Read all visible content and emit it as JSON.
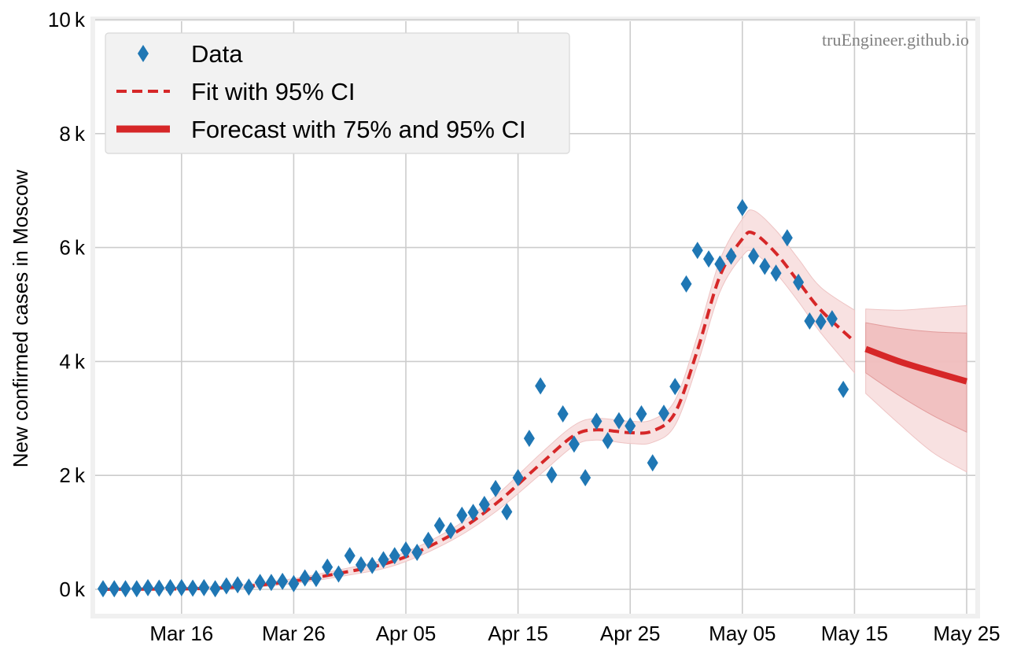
{
  "chart_data": {
    "type": "line",
    "title": "",
    "xlabel": "",
    "ylabel": "New confirmed cases in Moscow",
    "y_unit_suffix": "k",
    "grid": true,
    "legend_placement": "top-left",
    "watermark": "truEngineer.github.io",
    "x_range": [
      "2020-03-09",
      "2020-05-25"
    ],
    "ylim": [
      0,
      10
    ],
    "x_ticks": [
      {
        "date": "2020-03-16",
        "label": "Mar 16"
      },
      {
        "date": "2020-03-26",
        "label": "Mar 26"
      },
      {
        "date": "2020-04-05",
        "label": "Apr 05"
      },
      {
        "date": "2020-04-15",
        "label": "Apr 15"
      },
      {
        "date": "2020-04-25",
        "label": "Apr 25"
      },
      {
        "date": "2020-05-05",
        "label": "May 05"
      },
      {
        "date": "2020-05-15",
        "label": "May 15"
      },
      {
        "date": "2020-05-25",
        "label": "May 25"
      }
    ],
    "y_ticks": [
      {
        "value": 0,
        "label": "0"
      },
      {
        "value": 2,
        "label": "2"
      },
      {
        "value": 4,
        "label": "4"
      },
      {
        "value": 6,
        "label": "6"
      },
      {
        "value": 8,
        "label": "8"
      },
      {
        "value": 10,
        "label": "10"
      }
    ],
    "legend": [
      {
        "label": "Data",
        "symbol": "diamond"
      },
      {
        "label": "Fit with 95% CI",
        "symbol": "dashed-line"
      },
      {
        "label": "Forecast with 75% and 95% CI",
        "symbol": "thick-line"
      }
    ],
    "colors": {
      "data": "#1f77b4",
      "fit": "#d62728",
      "band_light": "#f7dcdc",
      "band_dark": "#efb5b5",
      "grid": "#cccccc",
      "frame": "#f0f0f0"
    },
    "series": [
      {
        "name": "Data",
        "kind": "scatter",
        "start_date": "2020-03-09",
        "values": [
          0.01,
          0.01,
          0.01,
          0.01,
          0.03,
          0.02,
          0.03,
          0.03,
          0.02,
          0.03,
          0.01,
          0.06,
          0.08,
          0.04,
          0.12,
          0.12,
          0.14,
          0.1,
          0.2,
          0.19,
          0.39,
          0.27,
          0.59,
          0.43,
          0.42,
          0.52,
          0.59,
          0.69,
          0.65,
          0.86,
          1.12,
          1.03,
          1.3,
          1.35,
          1.49,
          1.77,
          1.36,
          1.96,
          2.65,
          3.57,
          2.01,
          3.08,
          2.55,
          1.96,
          2.95,
          2.61,
          2.96,
          2.87,
          3.08,
          2.22,
          3.09,
          3.56,
          5.36,
          5.95,
          5.8,
          5.71,
          5.85,
          6.7,
          5.85,
          5.67,
          5.55,
          6.17,
          5.39,
          4.71,
          4.7,
          4.75,
          3.51
        ]
      },
      {
        "name": "Fit with 95% CI",
        "kind": "line",
        "points": [
          {
            "date": "2020-03-09",
            "y": 0.0,
            "lo": 0.0,
            "hi": 0.02
          },
          {
            "date": "2020-03-19",
            "y": 0.02,
            "lo": 0.0,
            "hi": 0.05
          },
          {
            "date": "2020-03-25",
            "y": 0.12,
            "lo": 0.08,
            "hi": 0.16
          },
          {
            "date": "2020-03-30",
            "y": 0.28,
            "lo": 0.22,
            "hi": 0.34
          },
          {
            "date": "2020-04-04",
            "y": 0.5,
            "lo": 0.42,
            "hi": 0.58
          },
          {
            "date": "2020-04-09",
            "y": 0.95,
            "lo": 0.85,
            "hi": 1.05
          },
          {
            "date": "2020-04-13",
            "y": 1.5,
            "lo": 1.36,
            "hi": 1.64
          },
          {
            "date": "2020-04-17",
            "y": 2.2,
            "lo": 2.02,
            "hi": 2.38
          },
          {
            "date": "2020-04-20",
            "y": 2.7,
            "lo": 2.52,
            "hi": 2.88
          },
          {
            "date": "2020-04-22",
            "y": 2.8,
            "lo": 2.62,
            "hi": 3.0
          },
          {
            "date": "2020-04-25",
            "y": 2.75,
            "lo": 2.56,
            "hi": 2.95
          },
          {
            "date": "2020-04-27",
            "y": 2.78,
            "lo": 2.58,
            "hi": 2.98
          },
          {
            "date": "2020-04-29",
            "y": 3.1,
            "lo": 2.88,
            "hi": 3.32
          },
          {
            "date": "2020-05-01",
            "y": 4.2,
            "lo": 3.95,
            "hi": 4.45
          },
          {
            "date": "2020-05-03",
            "y": 5.5,
            "lo": 5.22,
            "hi": 5.78
          },
          {
            "date": "2020-05-05",
            "y": 6.15,
            "lo": 5.85,
            "hi": 6.5
          },
          {
            "date": "2020-05-06",
            "y": 6.25,
            "lo": 5.92,
            "hi": 6.65
          },
          {
            "date": "2020-05-08",
            "y": 5.9,
            "lo": 5.55,
            "hi": 6.3
          },
          {
            "date": "2020-05-10",
            "y": 5.4,
            "lo": 5.05,
            "hi": 5.8
          },
          {
            "date": "2020-05-12",
            "y": 4.9,
            "lo": 4.5,
            "hi": 5.3
          },
          {
            "date": "2020-05-15",
            "y": 4.35,
            "lo": 3.8,
            "hi": 4.9
          }
        ]
      },
      {
        "name": "Forecast with 75% and 95% CI",
        "kind": "line",
        "points": [
          {
            "date": "2020-05-16",
            "y": 4.22,
            "lo75": 3.8,
            "hi75": 4.68,
            "lo95": 3.44,
            "hi95": 4.92
          },
          {
            "date": "2020-05-19",
            "y": 4.0,
            "lo75": 3.4,
            "hi75": 4.58,
            "lo95": 2.9,
            "hi95": 4.9
          },
          {
            "date": "2020-05-22",
            "y": 3.82,
            "lo75": 3.05,
            "hi75": 4.52,
            "lo95": 2.4,
            "hi95": 4.94
          },
          {
            "date": "2020-05-25",
            "y": 3.65,
            "lo75": 2.76,
            "hi75": 4.5,
            "lo95": 2.06,
            "hi95": 4.98
          }
        ]
      }
    ]
  }
}
